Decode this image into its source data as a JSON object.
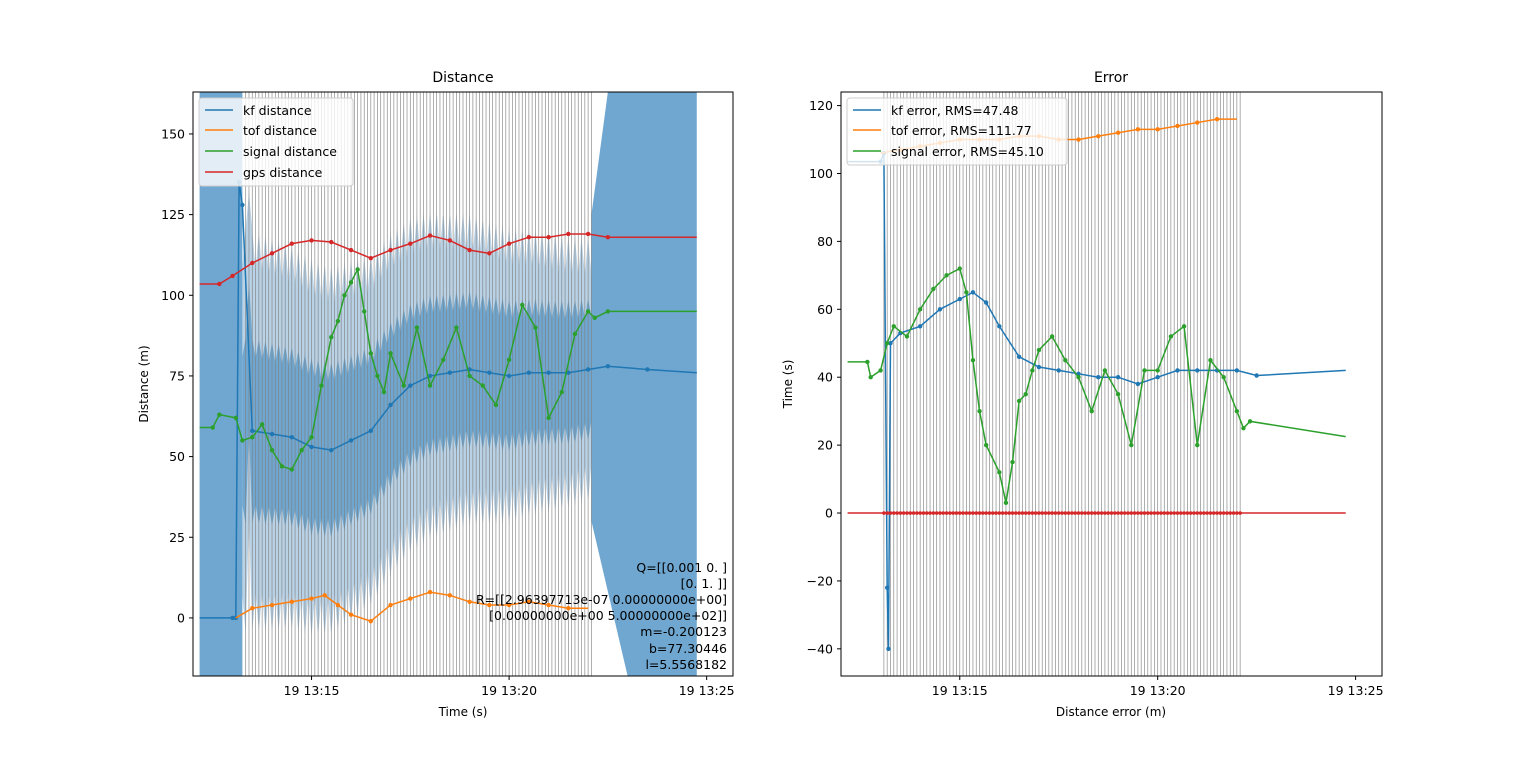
{
  "colors": {
    "kf": "#1f77b4",
    "tof": "#ff7f0e",
    "signal": "#2ca02c",
    "gps": "#d62728",
    "vline": "#808080",
    "band_outer": "#b9d2e6",
    "band_inner": "#6fa7d0"
  },
  "chart_data": [
    {
      "type": "line",
      "title": "Distance",
      "xlabel": "Time (s)",
      "ylabel": "Distance (m)",
      "xlim": [
        "13:12:00",
        "13:25:40"
      ],
      "ylim": [
        -18,
        163
      ],
      "x_ticks": [
        "19 13:15",
        "19 13:20",
        "19 13:25"
      ],
      "y_ticks": [
        "0",
        "25",
        "50",
        "75",
        "100",
        "125",
        "150"
      ],
      "legend_position": "upper left",
      "legend": [
        "kf distance",
        "tof distance",
        "signal distance",
        "gps distance"
      ],
      "annotation": [
        "Q=[[0.001 0.   ]",
        "[0.    1.   ]]",
        "R=[[2.96397713e-07 0.00000000e+00]",
        "[0.00000000e+00 5.00000000e+02]]",
        "m=-0.200123",
        "b=77.30446",
        "l=5.5568182"
      ],
      "measurement_vlines": "grey vertical lines at each measurement time from 13:13:20 to 13:22:05",
      "series": [
        {
          "name": "kf distance",
          "x": [
            "13:12:10",
            "13:13:00",
            "13:13:05",
            "13:13:10",
            "13:13:15",
            "13:13:30",
            "13:14:00",
            "13:14:30",
            "13:15:00",
            "13:15:30",
            "13:16:00",
            "13:16:30",
            "13:17:00",
            "13:17:30",
            "13:18:00",
            "13:18:30",
            "13:19:00",
            "13:19:30",
            "13:20:00",
            "13:20:30",
            "13:21:00",
            "13:21:30",
            "13:22:00",
            "13:22:30",
            "13:23:30",
            "13:24:45"
          ],
          "y": [
            0,
            0,
            0,
            135,
            128,
            58,
            57,
            56,
            53,
            52,
            55,
            58,
            66,
            72,
            75,
            76,
            77,
            76,
            75,
            76,
            76,
            76,
            77,
            78,
            77,
            76
          ]
        },
        {
          "name": "tof distance",
          "x": [
            "13:13:05",
            "13:13:30",
            "13:14:00",
            "13:14:30",
            "13:15:00",
            "13:15:20",
            "13:15:40",
            "13:16:00",
            "13:16:30",
            "13:17:00",
            "13:17:30",
            "13:18:00",
            "13:18:30",
            "13:19:00",
            "13:19:30",
            "13:20:00",
            "13:20:30",
            "13:21:00",
            "13:21:30",
            "13:22:00"
          ],
          "y": [
            0,
            3,
            4,
            5,
            6,
            7,
            4,
            1,
            -1,
            4,
            6,
            8,
            7,
            5,
            4,
            4,
            5,
            4,
            3,
            3
          ]
        },
        {
          "name": "signal distance",
          "x": [
            "13:12:10",
            "13:12:30",
            "13:12:40",
            "13:13:05",
            "13:13:15",
            "13:13:30",
            "13:13:45",
            "13:14:00",
            "13:14:15",
            "13:14:30",
            "13:14:45",
            "13:15:00",
            "13:15:15",
            "13:15:30",
            "13:15:40",
            "13:15:50",
            "13:16:00",
            "13:16:10",
            "13:16:20",
            "13:16:30",
            "13:16:40",
            "13:16:50",
            "13:17:00",
            "13:17:20",
            "13:17:40",
            "13:18:00",
            "13:18:20",
            "13:18:40",
            "13:19:00",
            "13:19:20",
            "13:19:40",
            "13:20:00",
            "13:20:20",
            "13:20:40",
            "13:21:00",
            "13:21:20",
            "13:21:40",
            "13:22:00",
            "13:22:10",
            "13:22:30",
            "13:24:45"
          ],
          "y": [
            59,
            59,
            63,
            62,
            55,
            56,
            60,
            52,
            47,
            46,
            52,
            56,
            72,
            87,
            92,
            100,
            104,
            108,
            95,
            82,
            75,
            70,
            82,
            72,
            90,
            72,
            80,
            90,
            75,
            72,
            66,
            80,
            97,
            90,
            62,
            70,
            88,
            95,
            93,
            95,
            95
          ]
        },
        {
          "name": "gps distance",
          "x": [
            "13:12:10",
            "13:12:40",
            "13:13:00",
            "13:13:30",
            "13:14:00",
            "13:14:30",
            "13:15:00",
            "13:15:30",
            "13:16:00",
            "13:16:30",
            "13:17:00",
            "13:17:30",
            "13:18:00",
            "13:18:30",
            "13:19:00",
            "13:19:30",
            "13:20:00",
            "13:20:30",
            "13:21:00",
            "13:21:30",
            "13:22:00",
            "13:22:30",
            "13:24:45"
          ],
          "y": [
            103.5,
            103.5,
            106,
            110,
            113,
            116,
            117,
            116.5,
            114,
            111.5,
            114,
            116,
            118.5,
            117,
            114,
            113,
            116,
            118,
            118,
            119,
            119,
            118,
            118
          ]
        }
      ]
    },
    {
      "type": "line",
      "title": "Error",
      "xlabel": "Distance error (m)",
      "ylabel": "Time (s)",
      "xlim": [
        "13:12:00",
        "13:25:40"
      ],
      "ylim": [
        -48,
        124
      ],
      "x_ticks": [
        "19 13:15",
        "19 13:20",
        "19 13:25"
      ],
      "y_ticks": [
        "−40",
        "−20",
        "0",
        "20",
        "40",
        "60",
        "80",
        "100",
        "120"
      ],
      "legend_position": "upper left",
      "legend": [
        "kf error, RMS=47.48",
        "tof error, RMS=111.77",
        "signal error, RMS=45.10"
      ],
      "measurement_vlines": "grey vertical lines at each measurement time from 13:13:05 to 13:22:05",
      "series": [
        {
          "name": "kf error, RMS=47.48",
          "x": [
            "13:12:10",
            "13:13:00",
            "13:13:05",
            "13:13:10",
            "13:13:12",
            "13:13:15",
            "13:13:30",
            "13:14:00",
            "13:14:30",
            "13:15:00",
            "13:15:20",
            "13:15:40",
            "13:16:00",
            "13:16:30",
            "13:17:00",
            "13:17:30",
            "13:18:00",
            "13:18:30",
            "13:19:00",
            "13:19:30",
            "13:20:00",
            "13:20:30",
            "13:21:00",
            "13:21:30",
            "13:22:00",
            "13:22:30",
            "13:24:45"
          ],
          "y": [
            103.5,
            103.5,
            106,
            -22,
            -40,
            50,
            53,
            55,
            60,
            63,
            65,
            62,
            55,
            46,
            43,
            42,
            41,
            40,
            40,
            38,
            40,
            42,
            42,
            42,
            42,
            40.5,
            42
          ]
        },
        {
          "name": "tof error, RMS=111.77",
          "x": [
            "13:13:00",
            "13:13:30",
            "13:14:00",
            "13:14:30",
            "13:15:00",
            "13:15:30",
            "13:16:00",
            "13:16:30",
            "13:17:00",
            "13:17:30",
            "13:18:00",
            "13:18:30",
            "13:19:00",
            "13:19:30",
            "13:20:00",
            "13:20:30",
            "13:21:00",
            "13:21:30",
            "13:22:00"
          ],
          "y": [
            106,
            107,
            108,
            109,
            110,
            110,
            110,
            111,
            111,
            110,
            110,
            111,
            112,
            113,
            113,
            114,
            115,
            116,
            116
          ]
        },
        {
          "name": "signal error, RMS=45.10",
          "x": [
            "13:12:10",
            "13:12:40",
            "13:12:45",
            "13:13:00",
            "13:13:10",
            "13:13:20",
            "13:13:40",
            "13:14:00",
            "13:14:20",
            "13:14:40",
            "13:15:00",
            "13:15:10",
            "13:15:20",
            "13:15:30",
            "13:15:40",
            "13:16:00",
            "13:16:10",
            "13:16:20",
            "13:16:30",
            "13:16:40",
            "13:16:50",
            "13:17:00",
            "13:17:20",
            "13:17:40",
            "13:18:00",
            "13:18:20",
            "13:18:40",
            "13:19:00",
            "13:19:20",
            "13:19:40",
            "13:20:00",
            "13:20:20",
            "13:20:40",
            "13:21:00",
            "13:21:20",
            "13:21:40",
            "13:22:00",
            "13:22:10",
            "13:22:20",
            "13:24:45"
          ],
          "y": [
            44.5,
            44.5,
            40,
            42,
            50,
            55,
            52,
            60,
            66,
            70,
            72,
            65,
            45,
            30,
            20,
            12,
            3,
            15,
            33,
            35,
            42,
            48,
            52,
            45,
            40,
            30,
            42,
            35,
            20,
            42,
            42,
            52,
            55,
            20,
            45,
            40,
            30,
            25,
            27,
            22.5
          ]
        },
        {
          "name": "gps error",
          "x": [
            "13:12:10",
            "13:24:45"
          ],
          "y": [
            0,
            0
          ]
        }
      ]
    }
  ]
}
